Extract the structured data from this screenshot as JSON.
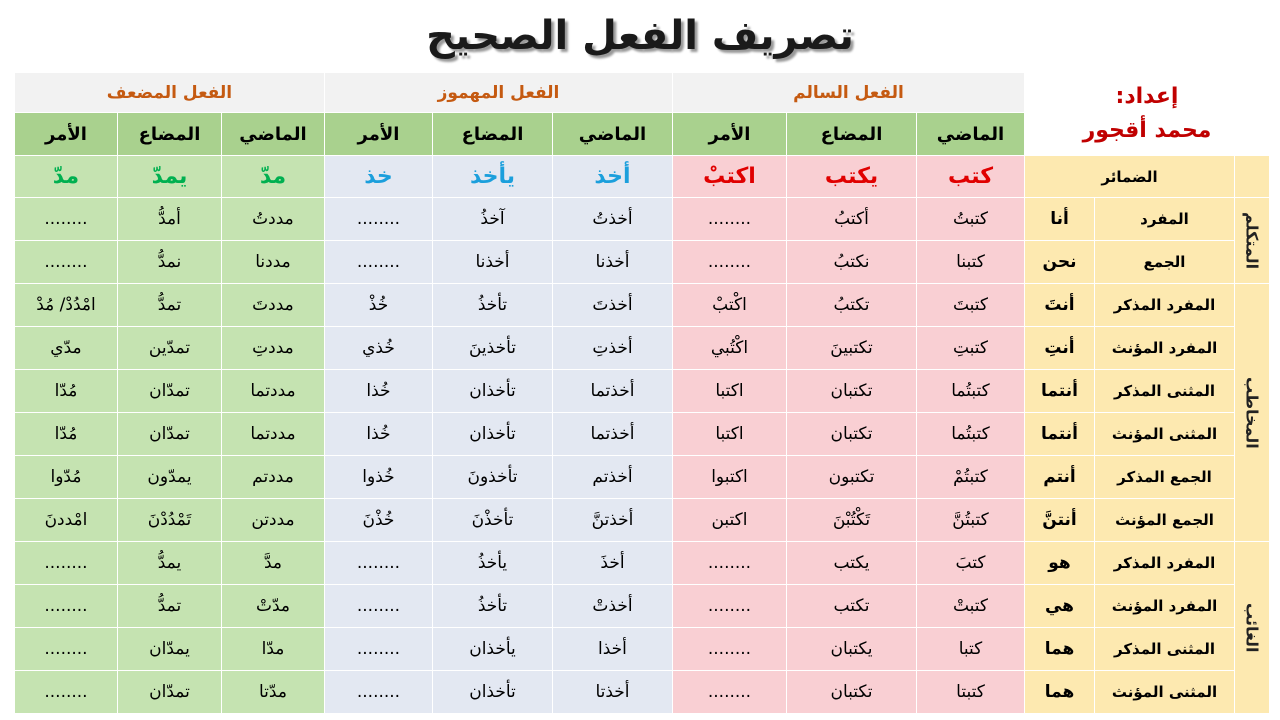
{
  "header": {
    "title": "تصريف الفعل الصحيح",
    "prepared_label": "إعداد:",
    "author": "محمد أقجور"
  },
  "table": {
    "verb_groups": [
      "الفعل السالم",
      "الفعل المهموز",
      "الفعل المضعف"
    ],
    "tenses": [
      "الماضي",
      "المضاع",
      "الأمر",
      "الماضي",
      "المضاع",
      "الأمر",
      "الماضي",
      "المضاع",
      "الأمر"
    ],
    "pronouns_header": "الضمائر",
    "examples": [
      "كتب",
      "يكتب",
      "اكتبْ",
      "أخذ",
      "يأخذ",
      "خذ",
      "مدّ",
      "يمدّ",
      "مدّ"
    ],
    "person_groups": [
      {
        "label": "المتكلم",
        "rows": [
          {
            "person": "المفرد",
            "pronoun": "أنا",
            "cells": [
              "كتبتُ",
              "أكتبُ",
              "........",
              "أخذتُ",
              "آخذُ",
              "........",
              "مددتُ",
              "أمدُّ",
              "........"
            ]
          },
          {
            "person": "الجمع",
            "pronoun": "نحن",
            "cells": [
              "كتبنا",
              "نكتبُ",
              "........",
              "أخذنا",
              "أخذنا",
              "........",
              "مددنا",
              "نمدُّ",
              "........"
            ]
          }
        ]
      },
      {
        "label": "المخاطب",
        "rows": [
          {
            "person": "المفرد المذكر",
            "pronoun": "أنتَ",
            "cells": [
              "كتبتَ",
              "تكتبُ",
              "اكْتبْ",
              "أخذتَ",
              "تأخذُ",
              "خُذْ",
              "مددتَ",
              "تمدُّ",
              "امْدُدْ/ مُدْ"
            ]
          },
          {
            "person": "المفرد المؤنث",
            "pronoun": "أنتِ",
            "cells": [
              "كتبتِ",
              "تكتبينَ",
              "اكْتُبي",
              "أخذتِ",
              "تأخذينَ",
              "خُذي",
              "مددتِ",
              "تمدّين",
              "مدّي"
            ]
          },
          {
            "person": "المثنى المذكر",
            "pronoun": "أنتما",
            "cells": [
              "كتبتُما",
              "تكتبان",
              "اكتبا",
              "أخذتما",
              "تأخذان",
              "خُذا",
              "مددتما",
              "تمدّان",
              "مُدّا"
            ]
          },
          {
            "person": "المثنى المؤنث",
            "pronoun": "أنتما",
            "cells": [
              "كتبتُما",
              "تكتبان",
              "اكتبا",
              "أخذتما",
              "تأخذان",
              "خُذا",
              "مددتما",
              "تمدّان",
              "مُدّا"
            ]
          },
          {
            "person": "الجمع المذكر",
            "pronoun": "أنتم",
            "cells": [
              "كتبتُمْ",
              "تكتبون",
              "اكتبوا",
              "أخذتم",
              "تأخذونَ",
              "خُذوا",
              "مددتم",
              "يمدّون",
              "مُدّوا"
            ]
          },
          {
            "person": "الجمع المؤنث",
            "pronoun": "أنتنَّ",
            "cells": [
              "كتبتُنَّ",
              "تَكْتُبْنَ",
              "اكتبن",
              "أخذتنَّ",
              "تأخذْنَ",
              "خُذْنَ",
              "مددتن",
              "تَمْدُدْنَ",
              "امْددنَ"
            ]
          }
        ]
      },
      {
        "label": "الغائب",
        "rows": [
          {
            "person": "المفرد المذكر",
            "pronoun": "هو",
            "cells": [
              "كتبَ",
              "يكتب",
              "........",
              "أخذَ",
              "يأخذُ",
              "........",
              "مدَّ",
              "يمدُّ",
              "........"
            ]
          },
          {
            "person": "المفرد المؤنث",
            "pronoun": "هي",
            "cells": [
              "كتبتْ",
              "تكتب",
              "........",
              "أخذتْ",
              "تأخذُ",
              "........",
              "مدّتْ",
              "تمدُّ",
              "........"
            ]
          },
          {
            "person": "المثنى المذكر",
            "pronoun": "هما",
            "cells": [
              "كتبا",
              "يكتبان",
              "........",
              "أخذا",
              "يأخذان",
              "........",
              "مدّا",
              "يمدّان",
              "........"
            ]
          },
          {
            "person": "المثنى المؤنث",
            "pronoun": "هما",
            "cells": [
              "كتبتا",
              "تكتبان",
              "........",
              "أخذتا",
              "تأخذان",
              "........",
              "مدّتا",
              "تمدّان",
              "........"
            ]
          }
        ]
      }
    ]
  }
}
